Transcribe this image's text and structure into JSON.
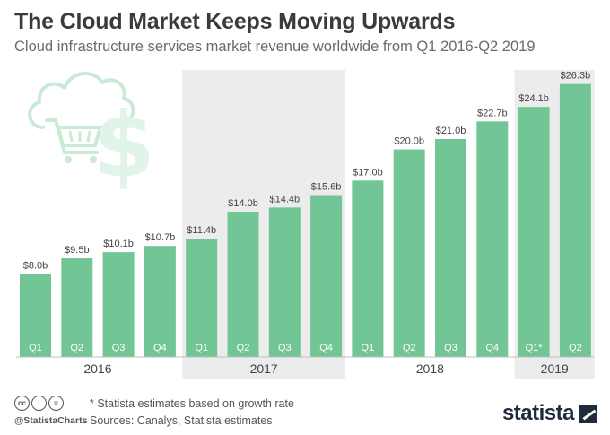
{
  "title": "The Cloud Market Keeps Moving Upwards",
  "subtitle": "Cloud infrastructure services market revenue worldwide from Q1 2016-Q2 2019",
  "chart_data": {
    "type": "bar",
    "unit": "billion USD",
    "categories": [
      "Q1",
      "Q2",
      "Q3",
      "Q4",
      "Q1",
      "Q2",
      "Q3",
      "Q4",
      "Q1",
      "Q2",
      "Q3",
      "Q4",
      "Q1*",
      "Q2"
    ],
    "values": [
      8.0,
      9.5,
      10.1,
      10.7,
      11.4,
      14.0,
      14.4,
      15.6,
      17.0,
      20.0,
      21.0,
      22.7,
      24.1,
      26.3
    ],
    "value_labels": [
      "$8.0b",
      "$9.5b",
      "$10.1b",
      "$10.7b",
      "$11.4b",
      "$14.0b",
      "$14.4b",
      "$15.6b",
      "$17.0b",
      "$20.0b",
      "$21.0b",
      "$22.7b",
      "$24.1b",
      "$26.3b"
    ],
    "years": [
      {
        "label": "2016",
        "start": 0,
        "count": 4,
        "shaded": false
      },
      {
        "label": "2017",
        "start": 4,
        "count": 4,
        "shaded": true
      },
      {
        "label": "2018",
        "start": 8,
        "count": 4,
        "shaded": false
      },
      {
        "label": "2019",
        "start": 12,
        "count": 2,
        "shaded": true
      }
    ],
    "ylim": [
      0,
      28
    ],
    "bar_color": "#72c595",
    "shade_color": "#ececec"
  },
  "footer": {
    "note": "* Statista estimates based on growth rate",
    "source": "Sources: Canalys, Statista estimates",
    "handle": "@StatistaCharts",
    "brand": "statista"
  },
  "colors": {
    "title": "#3b3b3b",
    "icon": "#c9ebd6"
  }
}
